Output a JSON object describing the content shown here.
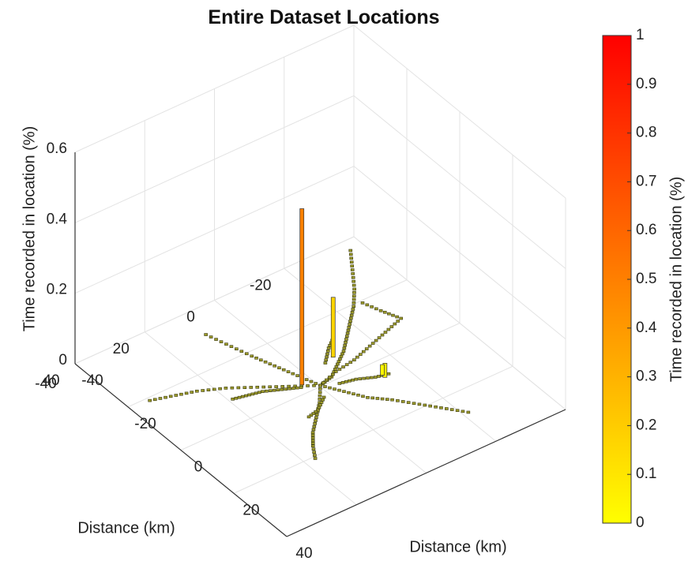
{
  "chart_data": {
    "type": "bar3d",
    "title": "Entire Dataset Locations",
    "xlabel": "Distance (km)",
    "ylabel": "Distance (km)",
    "zlabel": "Time recorded in location (%)",
    "colorbar_label": "Time recorded in location (%)",
    "xlim": [
      -40,
      40
    ],
    "ylim": [
      -40,
      40
    ],
    "zlim": [
      0,
      0.6
    ],
    "clim": [
      0,
      1
    ],
    "x_ticks": [
      -20,
      0,
      20,
      40
    ],
    "x_tick_labels": [
      "-20",
      "0",
      "20",
      "40"
    ],
    "x_tick_first_label": "-40",
    "y_ticks": [
      -40,
      -20,
      0,
      20,
      40
    ],
    "y_tick_labels": [
      "-40",
      "-20",
      "0",
      "20",
      "40"
    ],
    "z_ticks": [
      0,
      0.2,
      0.4,
      0.6
    ],
    "z_tick_labels": [
      "0",
      "0.2",
      "0.4",
      "0.6"
    ],
    "colorbar_ticks": [
      0,
      0.1,
      0.2,
      0.3,
      0.4,
      0.5,
      0.6,
      0.7,
      0.8,
      0.9,
      1
    ],
    "colorbar_tick_labels": [
      "0",
      "0.1",
      "0.2",
      "0.3",
      "0.4",
      "0.5",
      "0.6",
      "0.7",
      "0.8",
      "0.9",
      "1"
    ],
    "colormap": [
      "#ffff00",
      "#ff0000"
    ],
    "grid": true,
    "tall_bars": [
      {
        "x": 3,
        "y": -3,
        "z": 0.5
      },
      {
        "x": -9,
        "y": -7,
        "z": 0.17
      },
      {
        "x": -14,
        "y": 6,
        "z": 0.04
      },
      {
        "x": -14,
        "y": 5,
        "z": 0.03
      }
    ],
    "tracks": [
      [
        [
          -36,
          -36
        ],
        [
          -32,
          -30
        ],
        [
          -28,
          -24
        ],
        [
          -24,
          -19
        ],
        [
          -20,
          -15
        ],
        [
          -16,
          -11
        ],
        [
          -12,
          -7
        ],
        [
          -8,
          -4
        ],
        [
          -4,
          -1
        ],
        [
          0,
          0
        ]
      ],
      [
        [
          0,
          0
        ],
        [
          -3,
          5
        ],
        [
          -6,
          10
        ],
        [
          -10,
          14
        ],
        [
          -14,
          19
        ],
        [
          -18,
          24
        ],
        [
          -22,
          29
        ]
      ],
      [
        [
          0,
          0
        ],
        [
          4,
          5
        ],
        [
          8,
          9
        ],
        [
          12,
          13
        ],
        [
          15,
          17
        ],
        [
          18,
          22
        ]
      ],
      [
        [
          0,
          0
        ],
        [
          6,
          -4
        ],
        [
          12,
          -8
        ],
        [
          18,
          -12
        ],
        [
          24,
          -15
        ],
        [
          30,
          -17
        ],
        [
          36,
          -19
        ]
      ],
      [
        [
          0,
          0
        ],
        [
          2,
          -6
        ],
        [
          4,
          -12
        ],
        [
          6,
          -18
        ],
        [
          8,
          -25
        ],
        [
          10,
          -32
        ]
      ],
      [
        [
          0,
          0
        ],
        [
          -6,
          -2
        ],
        [
          -12,
          -3
        ],
        [
          -18,
          -5
        ],
        [
          -24,
          -7
        ],
        [
          -30,
          -9
        ]
      ],
      [
        [
          -30,
          -9
        ],
        [
          -28,
          -14
        ],
        [
          -26,
          -20
        ]
      ],
      [
        [
          4,
          -2
        ],
        [
          8,
          -4
        ],
        [
          12,
          -6
        ],
        [
          16,
          -7
        ],
        [
          20,
          -8
        ]
      ],
      [
        [
          -4,
          2
        ],
        [
          -8,
          3
        ],
        [
          -12,
          5
        ],
        [
          -16,
          6
        ]
      ],
      [
        [
          2,
          4
        ],
        [
          6,
          7
        ],
        [
          10,
          8
        ]
      ],
      [
        [
          -6,
          -6
        ],
        [
          -10,
          -10
        ],
        [
          -14,
          -13
        ]
      ]
    ]
  }
}
